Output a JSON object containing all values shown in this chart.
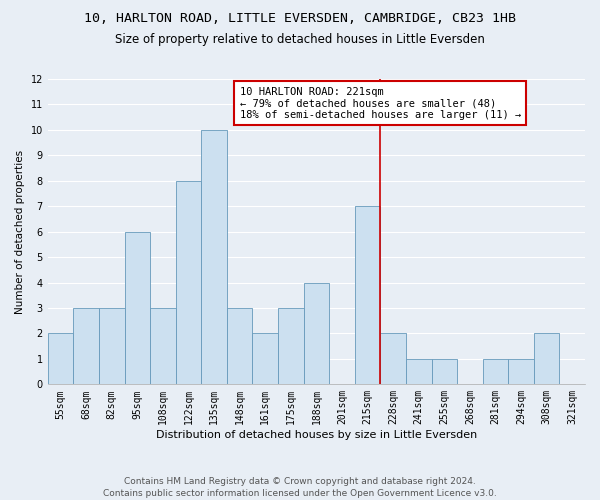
{
  "title1": "10, HARLTON ROAD, LITTLE EVERSDEN, CAMBRIDGE, CB23 1HB",
  "title2": "Size of property relative to detached houses in Little Eversden",
  "xlabel": "Distribution of detached houses by size in Little Eversden",
  "ylabel": "Number of detached properties",
  "footnote1": "Contains HM Land Registry data © Crown copyright and database right 2024.",
  "footnote2": "Contains public sector information licensed under the Open Government Licence v3.0.",
  "bar_labels": [
    "55sqm",
    "68sqm",
    "82sqm",
    "95sqm",
    "108sqm",
    "122sqm",
    "135sqm",
    "148sqm",
    "161sqm",
    "175sqm",
    "188sqm",
    "201sqm",
    "215sqm",
    "228sqm",
    "241sqm",
    "255sqm",
    "268sqm",
    "281sqm",
    "294sqm",
    "308sqm",
    "321sqm"
  ],
  "bar_values": [
    2,
    3,
    3,
    6,
    3,
    8,
    10,
    3,
    2,
    3,
    4,
    0,
    7,
    2,
    1,
    1,
    0,
    1,
    1,
    2,
    0
  ],
  "bar_color": "#cce0f0",
  "bar_edge_color": "#6699bb",
  "annotation_box_text": "10 HARLTON ROAD: 221sqm\n← 79% of detached houses are smaller (48)\n18% of semi-detached houses are larger (11) →",
  "red_line_x": 12.5,
  "ylim": [
    0,
    12
  ],
  "yticks": [
    0,
    1,
    2,
    3,
    4,
    5,
    6,
    7,
    8,
    9,
    10,
    11,
    12
  ],
  "background_color": "#e8eef5",
  "grid_color": "#ffffff",
  "annotation_box_color": "#ffffff",
  "annotation_box_edge_color": "#cc0000",
  "red_line_color": "#cc0000",
  "title1_fontsize": 9.5,
  "title2_fontsize": 8.5,
  "xlabel_fontsize": 8,
  "ylabel_fontsize": 7.5,
  "tick_fontsize": 7,
  "annotation_fontsize": 7.5,
  "footnote_fontsize": 6.5
}
